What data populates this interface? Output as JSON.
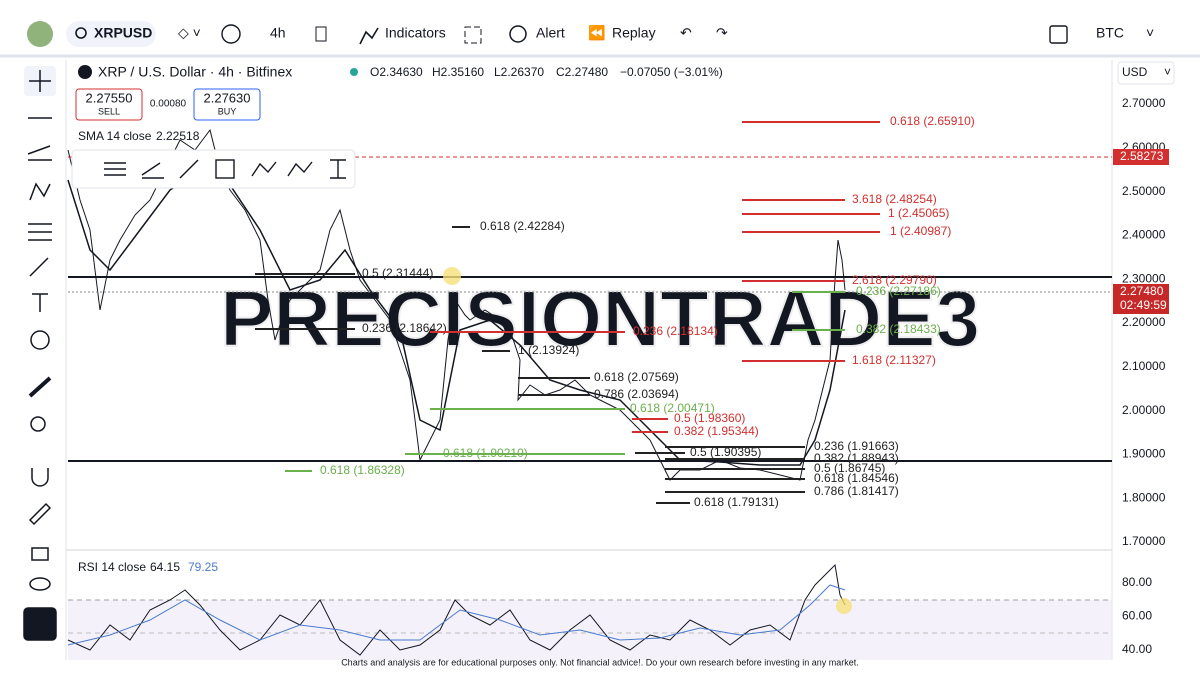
{
  "toolbar": {
    "symbol": "XRPUSD",
    "interval": "4h",
    "indicators": "Indicators",
    "alert": "Alert",
    "replay": "Replay",
    "currency": "BTC"
  },
  "header": {
    "title": "XRP / U.S. Dollar · 4h · Bitfinex",
    "open": "O2.34630",
    "high": "H2.35160",
    "low": "L2.26370",
    "close": "C2.27480",
    "change": "−0.07050 (−3.01%)",
    "sell_price": "2.27550",
    "sell": "SELL",
    "spread": "0.00080",
    "buy_price": "2.27630",
    "buy": "BUY",
    "sma": "SMA 14 close",
    "sma_value": "2.22518",
    "unit": "USD"
  },
  "watermark": "PRECISIONTRADE3",
  "price_axis": [
    "2.70000",
    "2.60000",
    "2.50000",
    "2.40000",
    "2.30000",
    "2.20000",
    "2.10000",
    "2.00000",
    "1.90000",
    "1.80000",
    "1.70000"
  ],
  "alert_price": "2.58273",
  "last_price": "2.27480",
  "countdown": "02:49:59",
  "fibs": [
    {
      "text": "0.618 (2.65910)",
      "color": "#d32f2f"
    },
    {
      "text": "3.618 (2.48254)",
      "color": "#d32f2f"
    },
    {
      "text": "1 (2.45065)",
      "color": "#d32f2f"
    },
    {
      "text": "1 (2.40987)",
      "color": "#d32f2f"
    },
    {
      "text": "2.618 (2.29790)",
      "color": "#d32f2f"
    },
    {
      "text": "0.236 (2.27186)",
      "color": "#6ab04c"
    },
    {
      "text": "0.382 (2.18433)",
      "color": "#6ab04c"
    },
    {
      "text": "1.618 (2.11327)",
      "color": "#d32f2f"
    },
    {
      "text": "0.618 (2.42284)",
      "color": "#222222"
    },
    {
      "text": "0.5 (2.31444)",
      "color": "#222222"
    },
    {
      "text": "0.236 (2.18642)",
      "color": "#222222"
    },
    {
      "text": "0.236 (2.18134)",
      "color": "#d32f2f"
    },
    {
      "text": "1 (2.13924)",
      "color": "#222222"
    },
    {
      "text": "0.618 (2.07569)",
      "color": "#222222"
    },
    {
      "text": "0.786 (2.03694)",
      "color": "#222222"
    },
    {
      "text": "0.618 (2.00471)",
      "color": "#6ab04c"
    },
    {
      "text": "0.5 (1.98360)",
      "color": "#d32f2f"
    },
    {
      "text": "0.382 (1.95344)",
      "color": "#d32f2f"
    },
    {
      "text": "0.618 (1.90210)",
      "color": "#6ab04c"
    },
    {
      "text": "0.618 (1.86328)",
      "color": "#6ab04c"
    },
    {
      "text": "0.5 (1.90395)",
      "color": "#222222"
    },
    {
      "text": "0.236 (1.91663)",
      "color": "#222222"
    },
    {
      "text": "0.382 (1.88943)",
      "color": "#222222"
    },
    {
      "text": "0.5 (1.86745)",
      "color": "#222222"
    },
    {
      "text": "0.618 (1.84546)",
      "color": "#222222"
    },
    {
      "text": "0.786 (1.81417)",
      "color": "#222222"
    },
    {
      "text": "0.618 (1.79131)",
      "color": "#222222"
    }
  ],
  "rsi": {
    "label": "RSI 14 close",
    "value": "64.15",
    "ma": "79.25",
    "axis": [
      "80.00",
      "60.00",
      "40.00"
    ]
  },
  "footer": "Charts and analysis are for educational purposes only. Not financial advice!. Do your own research before investing in any market."
}
